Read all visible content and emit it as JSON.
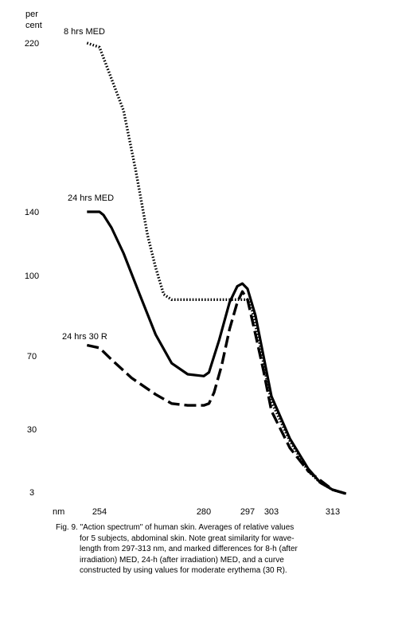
{
  "chart_data": {
    "type": "line",
    "y_unit_label": [
      "per",
      "cent"
    ],
    "x_unit_label": "nm",
    "y_ticks": [
      220,
      140,
      100,
      70,
      30,
      3
    ],
    "x_ticks": [
      254,
      280,
      297,
      303,
      313
    ],
    "x_range": [
      245,
      323
    ],
    "series": [
      {
        "name": "8 hrs MED",
        "style": "dotted",
        "points": [
          [
            251,
            220
          ],
          [
            254,
            218
          ],
          [
            260,
            188
          ],
          [
            263,
            160
          ],
          [
            266,
            125
          ],
          [
            268,
            105
          ],
          [
            270,
            93
          ],
          [
            272,
            91
          ],
          [
            280,
            91
          ],
          [
            290,
            91
          ],
          [
            296,
            91
          ],
          [
            297,
            91
          ],
          [
            298,
            88
          ],
          [
            300,
            75
          ],
          [
            302,
            55
          ],
          [
            303,
            45
          ],
          [
            306,
            25
          ],
          [
            309,
            12
          ],
          [
            311,
            7
          ],
          [
            313,
            4
          ],
          [
            317,
            2
          ]
        ]
      },
      {
        "name": "24 hrs MED",
        "style": "solid",
        "points": [
          [
            251,
            140
          ],
          [
            254,
            140
          ],
          [
            255,
            138
          ],
          [
            257,
            130
          ],
          [
            260,
            114
          ],
          [
            264,
            93
          ],
          [
            268,
            78
          ],
          [
            272,
            66
          ],
          [
            276,
            60
          ],
          [
            280,
            59
          ],
          [
            282,
            61
          ],
          [
            286,
            76
          ],
          [
            290,
            90
          ],
          [
            293,
            96
          ],
          [
            295,
            97
          ],
          [
            297,
            95
          ],
          [
            299,
            85
          ],
          [
            301,
            70
          ],
          [
            303,
            48
          ],
          [
            306,
            26
          ],
          [
            309,
            13
          ],
          [
            311,
            7
          ],
          [
            313,
            4
          ],
          [
            317,
            2
          ]
        ]
      },
      {
        "name": "24 hrs 30 R",
        "style": "dashed",
        "points": [
          [
            251,
            74
          ],
          [
            254,
            73
          ],
          [
            257,
            68
          ],
          [
            262,
            58
          ],
          [
            268,
            49
          ],
          [
            272,
            44
          ],
          [
            276,
            43
          ],
          [
            280,
            43
          ],
          [
            282,
            44
          ],
          [
            284,
            50
          ],
          [
            287,
            65
          ],
          [
            290,
            80
          ],
          [
            293,
            90
          ],
          [
            295,
            94
          ],
          [
            297,
            91
          ],
          [
            299,
            78
          ],
          [
            301,
            62
          ],
          [
            303,
            40
          ],
          [
            306,
            22
          ],
          [
            309,
            12
          ],
          [
            311,
            8
          ],
          [
            313,
            4
          ],
          [
            317,
            2
          ]
        ]
      }
    ]
  },
  "caption": {
    "lines": [
      "Fig. 9. \"Action spectrum\" of human skin. Averages of relative values",
      "for 5 subjects, abdominal skin.  Note great similarity for wave-",
      "length from 297-313 nm, and marked differences for 8-h (after",
      "irradiation) MED, 24-h (after irradiation) MED, and a curve",
      "constructed by using values for moderate erythema (30 R)."
    ]
  }
}
